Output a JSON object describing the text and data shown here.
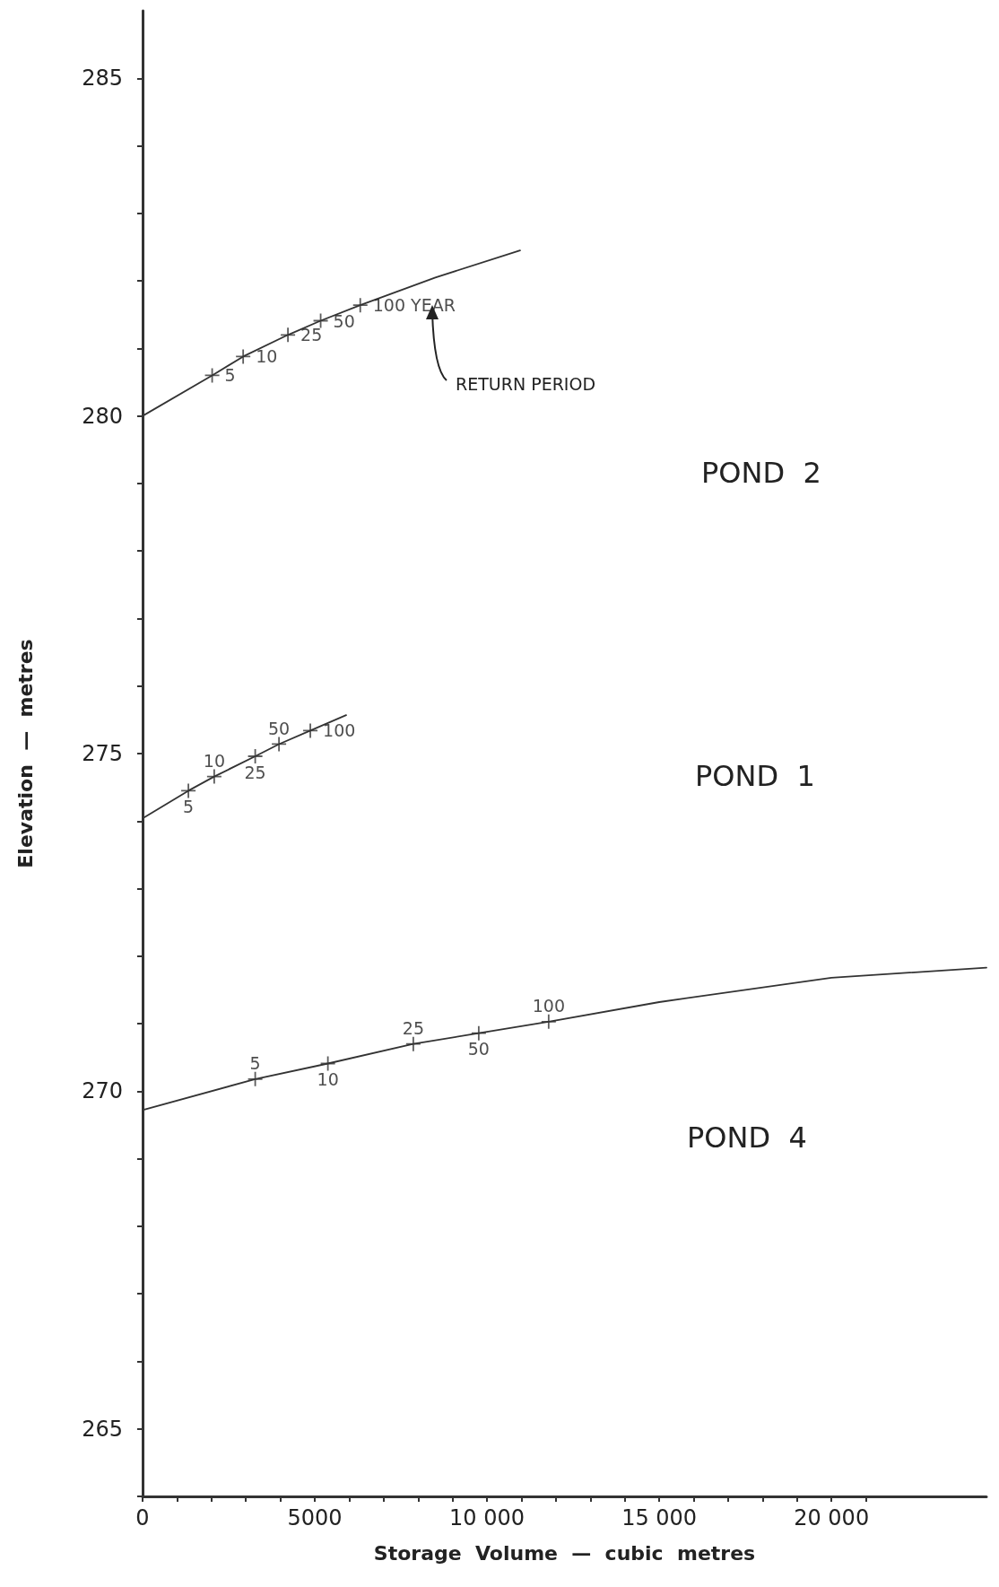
{
  "chart_data": {
    "type": "line",
    "xlabel": "Storage  Volume  —  cubic  metres",
    "ylabel": "Elevation  —  metres",
    "xlim": [
      0,
      24500
    ],
    "ylim": [
      264,
      286
    ],
    "xticks": [
      0,
      {
        "value": 1000,
        "label": null
      },
      {
        "value": 2000,
        "label": null
      },
      {
        "value": 3000,
        "label": null
      },
      {
        "value": 4000,
        "label": null
      },
      {
        "value": 5000,
        "label": "5000"
      },
      {
        "value": 6000,
        "label": null
      },
      {
        "value": 7000,
        "label": null
      },
      {
        "value": 8000,
        "label": null
      },
      {
        "value": 9000,
        "label": null
      },
      {
        "value": 10000,
        "label": "10 000"
      },
      {
        "value": 11000,
        "label": null
      },
      {
        "value": 12000,
        "label": null
      },
      {
        "value": 13000,
        "label": null
      },
      {
        "value": 14000,
        "label": null
      },
      {
        "value": 15000,
        "label": "15 000"
      },
      {
        "value": 16000,
        "label": null
      },
      {
        "value": 17000,
        "label": null
      },
      {
        "value": 18000,
        "label": null
      },
      {
        "value": 19000,
        "label": null
      },
      {
        "value": 20000,
        "label": "20 000"
      },
      {
        "value": 21000,
        "label": null
      }
    ],
    "yticks": [
      {
        "value": 264,
        "label": null
      },
      265,
      {
        "value": 266,
        "label": null
      },
      {
        "value": 267,
        "label": null
      },
      {
        "value": 268,
        "label": null
      },
      {
        "value": 269,
        "label": null
      },
      270,
      {
        "value": 271,
        "label": null
      },
      {
        "value": 272,
        "label": null
      },
      {
        "value": 273,
        "label": null
      },
      {
        "value": 274,
        "label": null
      },
      275,
      {
        "value": 276,
        "label": null
      },
      {
        "value": 277,
        "label": null
      },
      {
        "value": 278,
        "label": null
      },
      {
        "value": 279,
        "label": null
      },
      280,
      {
        "value": 281,
        "label": null
      },
      {
        "value": 282,
        "label": null
      },
      {
        "value": 283,
        "label": null
      },
      {
        "value": 284,
        "label": null
      },
      285
    ],
    "grid": false,
    "series": [
      {
        "marker": "none",
        "color": "#333333",
        "x": [
          0,
          2020,
          2920,
          4220,
          5170,
          6320,
          8500,
          10960
        ],
        "values": [
          280,
          280.6,
          280.88,
          281.2,
          281.41,
          281.64,
          282.05,
          282.45
        ]
      },
      {
        "type": "scatter",
        "marker": "cross",
        "color": "#333333",
        "x": [
          2020,
          2920,
          4220,
          5170,
          6320
        ],
        "values": [
          280.6,
          280.88,
          281.2,
          281.41,
          281.64
        ]
      },
      {
        "marker": "none",
        "color": "#333333",
        "x": [
          0,
          1330,
          2080,
          3270,
          3960,
          4870,
          5910
        ],
        "values": [
          274.04,
          274.45,
          274.66,
          274.96,
          275.14,
          275.34,
          275.57
        ]
      },
      {
        "type": "scatter",
        "marker": "cross",
        "color": "#333333",
        "x": [
          1330,
          2080,
          3270,
          3960,
          4870
        ],
        "values": [
          274.45,
          274.66,
          274.96,
          275.14,
          275.34
        ]
      },
      {
        "marker": "none",
        "color": "#333333",
        "x": [
          0,
          3270,
          5380,
          7860,
          9760,
          11790,
          15000,
          20000,
          24500
        ],
        "values": [
          269.72,
          270.18,
          270.41,
          270.7,
          270.86,
          271.03,
          271.32,
          271.68,
          271.83
        ]
      },
      {
        "type": "scatter",
        "marker": "cross",
        "color": "#333333",
        "x": [
          3270,
          5380,
          7860,
          9760,
          11790
        ],
        "values": [
          270.18,
          270.41,
          270.7,
          270.86,
          271.03
        ]
      }
    ],
    "annotations": [
      {
        "text": "5",
        "x": 2020,
        "y": 280.6
      },
      {
        "text": "10",
        "x": 2920,
        "y": 280.88
      },
      {
        "text": "25",
        "x": 4220,
        "y": 281.2
      },
      {
        "text": "50",
        "x": 5170,
        "y": 281.41
      },
      {
        "text": "100 YEAR",
        "x": 6320,
        "y": 281.64
      },
      {
        "text": "5",
        "x": 1330,
        "y": 274.45
      },
      {
        "text": "10",
        "x": 2080,
        "y": 274.66
      },
      {
        "text": "25",
        "x": 3270,
        "y": 274.96
      },
      {
        "text": "50",
        "x": 3960,
        "y": 275.14
      },
      {
        "text": "100",
        "x": 4870,
        "y": 275.34
      },
      {
        "text": "5",
        "x": 3270,
        "y": 270.18
      },
      {
        "text": "10",
        "x": 5380,
        "y": 270.41
      },
      {
        "text": "25",
        "x": 7860,
        "y": 270.7
      },
      {
        "text": "50",
        "x": 9760,
        "y": 270.86
      },
      {
        "text": "100",
        "x": 11790,
        "y": 271.03
      },
      "RETURN PERIOD",
      "POND  2",
      "POND  1",
      "POND  4"
    ]
  }
}
